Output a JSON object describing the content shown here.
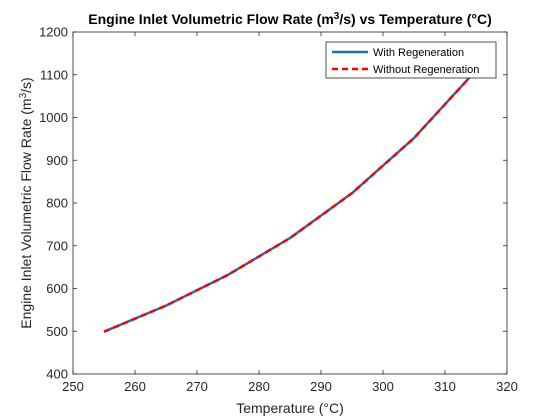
{
  "chart_data": {
    "type": "line",
    "title": {
      "prefix": "Engine Inlet Volumetric Flow Rate (m",
      "sup": "3",
      "suffix": "/s) vs Temperature (°C)"
    },
    "xlabel": "Temperature (°C)",
    "ylabel": {
      "prefix": "Engine Inlet Volumetric Flow Rate (m",
      "sup": "3",
      "suffix": "/s)"
    },
    "xlim": [
      250,
      320
    ],
    "ylim": [
      400,
      1200
    ],
    "xticks": [
      250,
      260,
      270,
      280,
      290,
      300,
      310,
      320
    ],
    "yticks": [
      400,
      500,
      600,
      700,
      800,
      900,
      1000,
      1100,
      1200
    ],
    "grid": false,
    "legend_position": "top-right",
    "series": [
      {
        "name": "With Regeneration",
        "color": "#1f6faf",
        "style": "solid",
        "x": [
          255,
          265,
          275,
          285,
          295,
          305,
          315
        ],
        "y": [
          499,
          560,
          632,
          718,
          823,
          952,
          1110
        ]
      },
      {
        "name": "Without Regeneration",
        "color": "#ff0000",
        "style": "dashed",
        "x": [
          255,
          265,
          275,
          285,
          295,
          305,
          315
        ],
        "y": [
          499,
          560,
          632,
          718,
          823,
          952,
          1110
        ]
      }
    ]
  }
}
